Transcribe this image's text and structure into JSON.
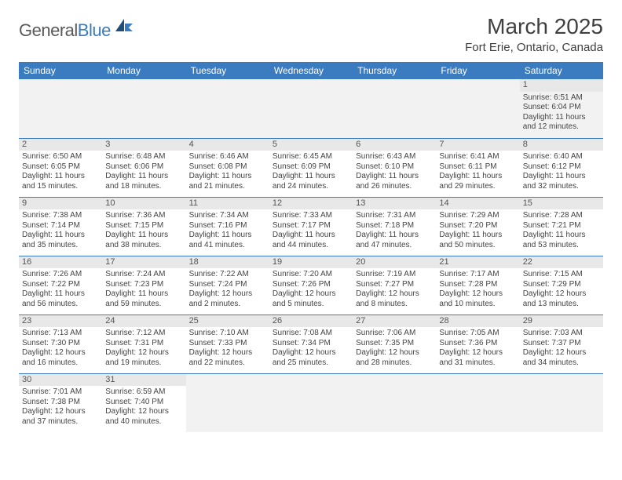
{
  "logo": {
    "text1": "General",
    "text2": "Blue"
  },
  "title": "March 2025",
  "location": "Fort Erie, Ontario, Canada",
  "colors": {
    "header_bg": "#3b7bbf",
    "header_fg": "#ffffff",
    "daynum_bg": "#e8e8e8",
    "border": "#3b7bbf",
    "body_text": "#444444"
  },
  "day_headers": [
    "Sunday",
    "Monday",
    "Tuesday",
    "Wednesday",
    "Thursday",
    "Friday",
    "Saturday"
  ],
  "weeks": [
    [
      null,
      null,
      null,
      null,
      null,
      null,
      {
        "n": "1",
        "sr": "Sunrise: 6:51 AM",
        "ss": "Sunset: 6:04 PM",
        "dl1": "Daylight: 11 hours",
        "dl2": "and 12 minutes."
      }
    ],
    [
      {
        "n": "2",
        "sr": "Sunrise: 6:50 AM",
        "ss": "Sunset: 6:05 PM",
        "dl1": "Daylight: 11 hours",
        "dl2": "and 15 minutes."
      },
      {
        "n": "3",
        "sr": "Sunrise: 6:48 AM",
        "ss": "Sunset: 6:06 PM",
        "dl1": "Daylight: 11 hours",
        "dl2": "and 18 minutes."
      },
      {
        "n": "4",
        "sr": "Sunrise: 6:46 AM",
        "ss": "Sunset: 6:08 PM",
        "dl1": "Daylight: 11 hours",
        "dl2": "and 21 minutes."
      },
      {
        "n": "5",
        "sr": "Sunrise: 6:45 AM",
        "ss": "Sunset: 6:09 PM",
        "dl1": "Daylight: 11 hours",
        "dl2": "and 24 minutes."
      },
      {
        "n": "6",
        "sr": "Sunrise: 6:43 AM",
        "ss": "Sunset: 6:10 PM",
        "dl1": "Daylight: 11 hours",
        "dl2": "and 26 minutes."
      },
      {
        "n": "7",
        "sr": "Sunrise: 6:41 AM",
        "ss": "Sunset: 6:11 PM",
        "dl1": "Daylight: 11 hours",
        "dl2": "and 29 minutes."
      },
      {
        "n": "8",
        "sr": "Sunrise: 6:40 AM",
        "ss": "Sunset: 6:12 PM",
        "dl1": "Daylight: 11 hours",
        "dl2": "and 32 minutes."
      }
    ],
    [
      {
        "n": "9",
        "sr": "Sunrise: 7:38 AM",
        "ss": "Sunset: 7:14 PM",
        "dl1": "Daylight: 11 hours",
        "dl2": "and 35 minutes."
      },
      {
        "n": "10",
        "sr": "Sunrise: 7:36 AM",
        "ss": "Sunset: 7:15 PM",
        "dl1": "Daylight: 11 hours",
        "dl2": "and 38 minutes."
      },
      {
        "n": "11",
        "sr": "Sunrise: 7:34 AM",
        "ss": "Sunset: 7:16 PM",
        "dl1": "Daylight: 11 hours",
        "dl2": "and 41 minutes."
      },
      {
        "n": "12",
        "sr": "Sunrise: 7:33 AM",
        "ss": "Sunset: 7:17 PM",
        "dl1": "Daylight: 11 hours",
        "dl2": "and 44 minutes."
      },
      {
        "n": "13",
        "sr": "Sunrise: 7:31 AM",
        "ss": "Sunset: 7:18 PM",
        "dl1": "Daylight: 11 hours",
        "dl2": "and 47 minutes."
      },
      {
        "n": "14",
        "sr": "Sunrise: 7:29 AM",
        "ss": "Sunset: 7:20 PM",
        "dl1": "Daylight: 11 hours",
        "dl2": "and 50 minutes."
      },
      {
        "n": "15",
        "sr": "Sunrise: 7:28 AM",
        "ss": "Sunset: 7:21 PM",
        "dl1": "Daylight: 11 hours",
        "dl2": "and 53 minutes."
      }
    ],
    [
      {
        "n": "16",
        "sr": "Sunrise: 7:26 AM",
        "ss": "Sunset: 7:22 PM",
        "dl1": "Daylight: 11 hours",
        "dl2": "and 56 minutes."
      },
      {
        "n": "17",
        "sr": "Sunrise: 7:24 AM",
        "ss": "Sunset: 7:23 PM",
        "dl1": "Daylight: 11 hours",
        "dl2": "and 59 minutes."
      },
      {
        "n": "18",
        "sr": "Sunrise: 7:22 AM",
        "ss": "Sunset: 7:24 PM",
        "dl1": "Daylight: 12 hours",
        "dl2": "and 2 minutes."
      },
      {
        "n": "19",
        "sr": "Sunrise: 7:20 AM",
        "ss": "Sunset: 7:26 PM",
        "dl1": "Daylight: 12 hours",
        "dl2": "and 5 minutes."
      },
      {
        "n": "20",
        "sr": "Sunrise: 7:19 AM",
        "ss": "Sunset: 7:27 PM",
        "dl1": "Daylight: 12 hours",
        "dl2": "and 8 minutes."
      },
      {
        "n": "21",
        "sr": "Sunrise: 7:17 AM",
        "ss": "Sunset: 7:28 PM",
        "dl1": "Daylight: 12 hours",
        "dl2": "and 10 minutes."
      },
      {
        "n": "22",
        "sr": "Sunrise: 7:15 AM",
        "ss": "Sunset: 7:29 PM",
        "dl1": "Daylight: 12 hours",
        "dl2": "and 13 minutes."
      }
    ],
    [
      {
        "n": "23",
        "sr": "Sunrise: 7:13 AM",
        "ss": "Sunset: 7:30 PM",
        "dl1": "Daylight: 12 hours",
        "dl2": "and 16 minutes."
      },
      {
        "n": "24",
        "sr": "Sunrise: 7:12 AM",
        "ss": "Sunset: 7:31 PM",
        "dl1": "Daylight: 12 hours",
        "dl2": "and 19 minutes."
      },
      {
        "n": "25",
        "sr": "Sunrise: 7:10 AM",
        "ss": "Sunset: 7:33 PM",
        "dl1": "Daylight: 12 hours",
        "dl2": "and 22 minutes."
      },
      {
        "n": "26",
        "sr": "Sunrise: 7:08 AM",
        "ss": "Sunset: 7:34 PM",
        "dl1": "Daylight: 12 hours",
        "dl2": "and 25 minutes."
      },
      {
        "n": "27",
        "sr": "Sunrise: 7:06 AM",
        "ss": "Sunset: 7:35 PM",
        "dl1": "Daylight: 12 hours",
        "dl2": "and 28 minutes."
      },
      {
        "n": "28",
        "sr": "Sunrise: 7:05 AM",
        "ss": "Sunset: 7:36 PM",
        "dl1": "Daylight: 12 hours",
        "dl2": "and 31 minutes."
      },
      {
        "n": "29",
        "sr": "Sunrise: 7:03 AM",
        "ss": "Sunset: 7:37 PM",
        "dl1": "Daylight: 12 hours",
        "dl2": "and 34 minutes."
      }
    ],
    [
      {
        "n": "30",
        "sr": "Sunrise: 7:01 AM",
        "ss": "Sunset: 7:38 PM",
        "dl1": "Daylight: 12 hours",
        "dl2": "and 37 minutes."
      },
      {
        "n": "31",
        "sr": "Sunrise: 6:59 AM",
        "ss": "Sunset: 7:40 PM",
        "dl1": "Daylight: 12 hours",
        "dl2": "and 40 minutes."
      },
      null,
      null,
      null,
      null,
      null
    ]
  ]
}
